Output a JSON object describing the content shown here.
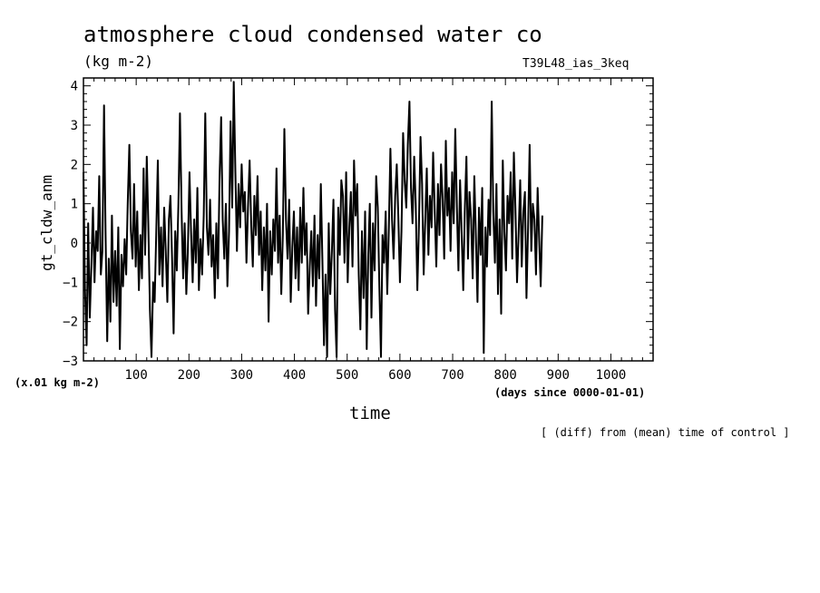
{
  "chart_data": {
    "type": "line",
    "title": "atmosphere cloud condensed water co",
    "units": "(kg m-2)",
    "run_label": "T39L48_ias_3keq",
    "ylabel": "gt_cldw_anm",
    "xlabel": "time",
    "x_units": "(days since 0000-01-01)",
    "y_scale_note": "(x.01 kg m-2)",
    "note": "[ (diff) from (mean) time of control ]",
    "xlim": [
      0,
      1080
    ],
    "ylim": [
      -3,
      4.2
    ],
    "x_ticks": [
      100,
      200,
      300,
      400,
      500,
      600,
      700,
      800,
      900,
      1000
    ],
    "y_ticks": [
      -3,
      -2,
      -1,
      0,
      1,
      2,
      3,
      4
    ],
    "line_color": "#000000",
    "series": [
      {
        "x_start": 0,
        "x_step": 3,
        "values": [
          1.8,
          -1.2,
          -2.6,
          0.5,
          -1.9,
          -0.6,
          0.9,
          -1.0,
          0.3,
          -0.2,
          1.7,
          -0.8,
          -0.2,
          3.5,
          0.2,
          -2.5,
          -0.4,
          -2.0,
          0.7,
          -1.5,
          -0.2,
          -1.6,
          0.4,
          -2.7,
          -0.3,
          -1.1,
          0.1,
          -0.8,
          1.0,
          2.5,
          0.3,
          -0.4,
          1.5,
          -0.6,
          0.8,
          -1.2,
          0.2,
          -0.9,
          1.9,
          -0.3,
          2.2,
          0.5,
          -1.7,
          -2.9,
          -1.0,
          -1.5,
          0.2,
          2.1,
          -0.8,
          0.4,
          -1.1,
          0.9,
          -0.2,
          -1.5,
          0.6,
          1.2,
          -0.4,
          -2.3,
          0.3,
          -0.7,
          1.0,
          3.3,
          0.8,
          -0.9,
          0.5,
          -1.3,
          -0.2,
          1.8,
          0.3,
          -1.0,
          0.6,
          -0.5,
          1.4,
          -1.2,
          0.1,
          -0.8,
          0.7,
          3.3,
          0.4,
          -0.3,
          1.1,
          -0.6,
          0.2,
          -1.4,
          0.5,
          -0.9,
          1.6,
          3.2,
          0.6,
          -0.4,
          1.0,
          -1.1,
          0.3,
          3.1,
          0.9,
          4.1,
          1.8,
          -0.2,
          1.5,
          0.4,
          2.0,
          0.8,
          1.3,
          -0.5,
          0.9,
          2.1,
          0.5,
          -0.6,
          1.2,
          0.2,
          1.7,
          -0.3,
          0.8,
          -1.2,
          0.4,
          -0.7,
          1.0,
          -2.0,
          0.3,
          -0.8,
          0.6,
          -0.2,
          1.9,
          -0.5,
          0.7,
          -1.3,
          0.2,
          2.9,
          0.6,
          -0.4,
          1.1,
          -1.5,
          -0.1,
          0.8,
          -0.9,
          0.4,
          -1.2,
          0.9,
          -0.5,
          1.4,
          -0.3,
          0.5,
          -1.8,
          -0.6,
          0.3,
          -1.1,
          0.7,
          -1.6,
          0.2,
          -0.9,
          1.5,
          -0.4,
          -2.6,
          -0.8,
          -2.9,
          0.5,
          -1.3,
          -0.2,
          1.1,
          -1.7,
          -2.9,
          0.9,
          -0.3,
          1.6,
          1.2,
          -0.5,
          1.8,
          -1.0,
          0.4,
          1.3,
          -0.6,
          2.1,
          0.7,
          1.5,
          -0.8,
          -2.2,
          0.3,
          -1.4,
          0.8,
          -2.7,
          -0.3,
          1.0,
          -1.9,
          0.5,
          -0.7,
          1.7,
          0.9,
          -1.1,
          -2.9,
          0.2,
          -0.5,
          0.8,
          -1.3,
          0.4,
          2.4,
          0.6,
          -0.4,
          1.2,
          2.0,
          0.7,
          -1.0,
          0.3,
          2.8,
          1.6,
          0.9,
          2.5,
          3.6,
          1.4,
          0.5,
          2.2,
          1.0,
          -1.2,
          0.4,
          2.7,
          1.5,
          -0.8,
          0.6,
          1.9,
          -0.3,
          1.2,
          0.4,
          2.3,
          0.8,
          -0.6,
          1.5,
          0.2,
          2.0,
          1.1,
          -0.4,
          2.6,
          0.7,
          1.4,
          -0.2,
          1.8,
          0.5,
          2.9,
          0.9,
          -0.7,
          1.6,
          0.3,
          -1.2,
          0.8,
          2.2,
          -0.4,
          1.3,
          0.6,
          -0.9,
          1.7,
          0.2,
          -1.5,
          0.9,
          -0.3,
          1.4,
          -2.8,
          0.4,
          -0.6,
          1.1,
          0.2,
          3.6,
          0.8,
          -0.5,
          1.5,
          -1.3,
          0.6,
          -1.8,
          2.1,
          0.3,
          -0.7,
          1.2,
          0.5,
          1.8,
          -0.4,
          2.3,
          0.9,
          -1.0,
          0.2,
          1.6,
          -0.6,
          0.8,
          1.3,
          -1.4,
          0.4,
          2.5,
          -0.2,
          1.0,
          0.6,
          -0.8,
          1.4,
          0.1,
          -1.1,
          0.7
        ]
      }
    ]
  }
}
